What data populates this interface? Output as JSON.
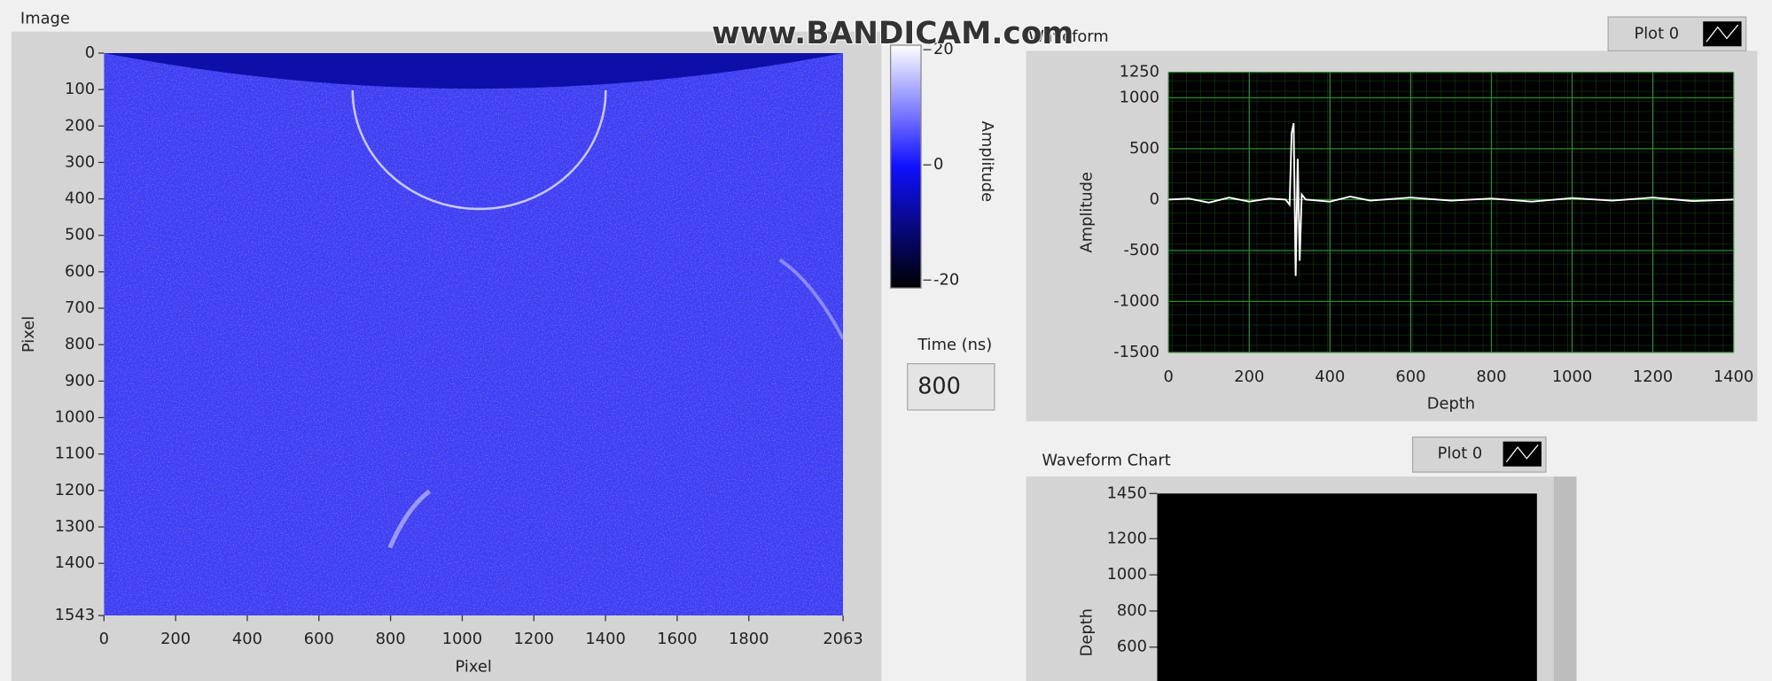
{
  "watermark": "www.BANDICAM.com",
  "image_panel": {
    "label": "Image",
    "x_label": "Pixel",
    "y_label": "Pixel",
    "xlim": [
      0,
      2063
    ],
    "xticks": [
      0,
      200,
      400,
      600,
      800,
      1000,
      1200,
      1400,
      1600,
      1800,
      2063
    ],
    "ylim": [
      0,
      1543
    ],
    "yticks": [
      0,
      100,
      200,
      300,
      400,
      500,
      600,
      700,
      800,
      900,
      1000,
      1100,
      1200,
      1300,
      1400,
      1543
    ]
  },
  "colorbar": {
    "label": "Amplitude",
    "lim": [
      -20,
      20
    ],
    "ticks": [
      20,
      0,
      -20
    ]
  },
  "time": {
    "label": "Time (ns)",
    "value": 800
  },
  "waveform_graph": {
    "label": "Waveform",
    "legend": "Plot 0",
    "x_label": "Depth",
    "y_label": "Amplitude",
    "xlim": [
      0,
      1400
    ],
    "xticks": [
      0,
      200,
      400,
      600,
      800,
      1000,
      1200,
      1400
    ],
    "ylim": [
      -1500,
      1250
    ],
    "yticks": [
      1250,
      1000,
      500,
      0,
      -500,
      -1000,
      -1500
    ],
    "x": [
      0,
      50,
      100,
      150,
      200,
      250,
      290,
      300,
      305,
      310,
      315,
      320,
      325,
      330,
      340,
      400,
      450,
      500,
      600,
      700,
      800,
      900,
      1000,
      1100,
      1200,
      1300,
      1400
    ],
    "values": [
      0,
      10,
      -30,
      20,
      -20,
      10,
      0,
      -50,
      650,
      750,
      -750,
      400,
      -600,
      50,
      0,
      -20,
      30,
      -10,
      20,
      -10,
      10,
      -20,
      15,
      -10,
      20,
      -15,
      0
    ],
    "color": "#ffffff"
  },
  "waveform_chart": {
    "label": "Waveform Chart",
    "legend": "Plot 0",
    "y_label": "Depth",
    "ylim": [
      450,
      1450
    ],
    "yticks": [
      1450,
      1200,
      1000,
      800,
      600
    ]
  }
}
